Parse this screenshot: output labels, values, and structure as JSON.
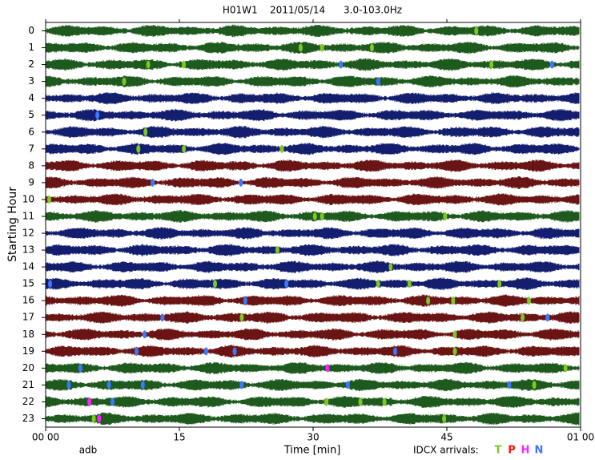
{
  "chart_data": {
    "type": "helicorder",
    "title": "H01W1    2011/05/14      3.0-103.0Hz",
    "y_label": "Starting Hour",
    "x_label": "Time [min]",
    "station_note": "adb",
    "legend_title": "IDCX arrivals:",
    "xlim": [
      0,
      60
    ],
    "xticks": [
      {
        "value": 0,
        "label": "00 00"
      },
      15,
      30,
      45,
      {
        "value": 60,
        "label": "01 00"
      }
    ],
    "ylim": [
      -0.5,
      23.5
    ],
    "yticks": [
      0,
      1,
      2,
      3,
      4,
      5,
      6,
      7,
      8,
      9,
      10,
      11,
      12,
      13,
      14,
      15,
      16,
      17,
      18,
      19,
      20,
      21,
      22,
      23
    ],
    "row_colors": [
      "#1e5a1e",
      "#1e5a1e",
      "#1e5a1e",
      "#1e5a1e",
      "#141e6e",
      "#141e6e",
      "#141e6e",
      "#141e6e",
      "#6a1414",
      "#6a1414",
      "#6a1414",
      "#1e5a1e",
      "#141e6e",
      "#141e6e",
      "#141e6e",
      "#141e6e",
      "#6a1414",
      "#6a1414",
      "#6a1414",
      "#6a1414",
      "#1e5a1e",
      "#1e5a1e",
      "#1e5a1e",
      "#1e5a1e"
    ],
    "phases": [
      {
        "name": "T",
        "color": "#7ec820"
      },
      {
        "name": "P",
        "color": "#ff1010"
      },
      {
        "name": "H",
        "color": "#ff20ff"
      },
      {
        "name": "N",
        "color": "#3a78ff"
      }
    ],
    "arrivals": [
      {
        "hour": 0,
        "minute": 48.3,
        "phase": "T"
      },
      {
        "hour": 1,
        "minute": 28.6,
        "phase": "T"
      },
      {
        "hour": 1,
        "minute": 31.0,
        "phase": "T"
      },
      {
        "hour": 1,
        "minute": 36.6,
        "phase": "T"
      },
      {
        "hour": 2,
        "minute": 11.5,
        "phase": "T"
      },
      {
        "hour": 2,
        "minute": 15.5,
        "phase": "T"
      },
      {
        "hour": 2,
        "minute": 33.1,
        "phase": "N"
      },
      {
        "hour": 2,
        "minute": 50.0,
        "phase": "T"
      },
      {
        "hour": 2,
        "minute": 56.8,
        "phase": "N"
      },
      {
        "hour": 3,
        "minute": 8.8,
        "phase": "T"
      },
      {
        "hour": 3,
        "minute": 37.3,
        "phase": "N"
      },
      {
        "hour": 5,
        "minute": 5.8,
        "phase": "N"
      },
      {
        "hour": 6,
        "minute": 11.2,
        "phase": "T"
      },
      {
        "hour": 7,
        "minute": 10.4,
        "phase": "T"
      },
      {
        "hour": 7,
        "minute": 15.5,
        "phase": "T"
      },
      {
        "hour": 7,
        "minute": 26.5,
        "phase": "T"
      },
      {
        "hour": 9,
        "minute": 12.0,
        "phase": "N"
      },
      {
        "hour": 9,
        "minute": 21.9,
        "phase": "N"
      },
      {
        "hour": 10,
        "minute": 0.4,
        "phase": "T"
      },
      {
        "hour": 11,
        "minute": 30.2,
        "phase": "T"
      },
      {
        "hour": 11,
        "minute": 31.0,
        "phase": "T"
      },
      {
        "hour": 11,
        "minute": 44.8,
        "phase": "T"
      },
      {
        "hour": 13,
        "minute": 26.0,
        "phase": "T"
      },
      {
        "hour": 14,
        "minute": 38.7,
        "phase": "T"
      },
      {
        "hour": 15,
        "minute": 0.5,
        "phase": "N"
      },
      {
        "hour": 15,
        "minute": 19.0,
        "phase": "T"
      },
      {
        "hour": 15,
        "minute": 27.0,
        "phase": "N"
      },
      {
        "hour": 15,
        "minute": 37.3,
        "phase": "T"
      },
      {
        "hour": 15,
        "minute": 40.8,
        "phase": "T"
      },
      {
        "hour": 15,
        "minute": 50.9,
        "phase": "T"
      },
      {
        "hour": 16,
        "minute": 22.4,
        "phase": "N"
      },
      {
        "hour": 16,
        "minute": 42.9,
        "phase": "T"
      },
      {
        "hour": 16,
        "minute": 45.7,
        "phase": "T"
      },
      {
        "hour": 16,
        "minute": 54.2,
        "phase": "T"
      },
      {
        "hour": 17,
        "minute": 13.1,
        "phase": "N"
      },
      {
        "hour": 17,
        "minute": 22.0,
        "phase": "T"
      },
      {
        "hour": 17,
        "minute": 53.5,
        "phase": "T"
      },
      {
        "hour": 17,
        "minute": 56.3,
        "phase": "N"
      },
      {
        "hour": 18,
        "minute": 11.1,
        "phase": "N"
      },
      {
        "hour": 18,
        "minute": 45.9,
        "phase": "T"
      },
      {
        "hour": 19,
        "minute": 10.2,
        "phase": "N"
      },
      {
        "hour": 19,
        "minute": 18.0,
        "phase": "N"
      },
      {
        "hour": 19,
        "minute": 21.2,
        "phase": "N"
      },
      {
        "hour": 19,
        "minute": 39.2,
        "phase": "N"
      },
      {
        "hour": 19,
        "minute": 45.9,
        "phase": "T"
      },
      {
        "hour": 20,
        "minute": 3.9,
        "phase": "N"
      },
      {
        "hour": 20,
        "minute": 31.6,
        "phase": "H"
      },
      {
        "hour": 20,
        "minute": 58.3,
        "phase": "T"
      },
      {
        "hour": 21,
        "minute": 2.6,
        "phase": "N"
      },
      {
        "hour": 21,
        "minute": 7.1,
        "phase": "N"
      },
      {
        "hour": 21,
        "minute": 10.9,
        "phase": "N"
      },
      {
        "hour": 21,
        "minute": 22.0,
        "phase": "N"
      },
      {
        "hour": 21,
        "minute": 33.9,
        "phase": "N"
      },
      {
        "hour": 21,
        "minute": 52.0,
        "phase": "N"
      },
      {
        "hour": 21,
        "minute": 54.8,
        "phase": "T"
      },
      {
        "hour": 22,
        "minute": 4.9,
        "phase": "H"
      },
      {
        "hour": 22,
        "minute": 7.5,
        "phase": "N"
      },
      {
        "hour": 22,
        "minute": 31.5,
        "phase": "T"
      },
      {
        "hour": 22,
        "minute": 35.3,
        "phase": "T"
      },
      {
        "hour": 22,
        "minute": 38.0,
        "phase": "T"
      },
      {
        "hour": 23,
        "minute": 5.4,
        "phase": "T"
      },
      {
        "hour": 23,
        "minute": 6.0,
        "phase": "H"
      },
      {
        "hour": 23,
        "minute": 44.7,
        "phase": "T"
      }
    ]
  }
}
